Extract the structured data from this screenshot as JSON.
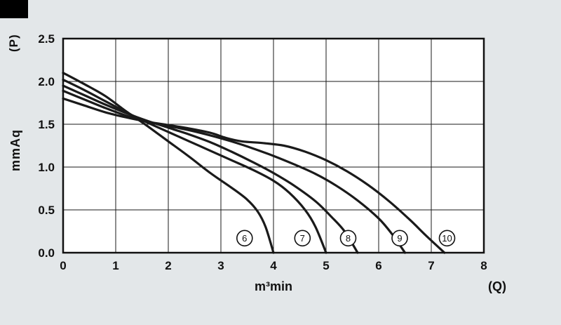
{
  "page": {
    "background_color": "#e3e7e9",
    "corner_mark_color": "#000000"
  },
  "chart_data": {
    "type": "line",
    "title": "",
    "xlabel": "m³min",
    "x_axis_symbol": "(Q)",
    "ylabel": "mmAq",
    "y_axis_symbol": "(P)",
    "xlim": [
      0,
      8
    ],
    "ylim": [
      0,
      2.5
    ],
    "grid": true,
    "line_color": "#1a1a1a",
    "grid_color": "#1a1a1a",
    "x_ticks": [
      "0",
      "1",
      "2",
      "3",
      "4",
      "5",
      "6",
      "7",
      "8"
    ],
    "y_ticks": [
      "0.0",
      "0.5",
      "1.0",
      "1.5",
      "2.0",
      "2.5"
    ],
    "series": [
      {
        "name": "curve-6",
        "label": "6",
        "points": [
          [
            0,
            2.1
          ],
          [
            0.4,
            1.97
          ],
          [
            0.8,
            1.83
          ],
          [
            1.2,
            1.65
          ],
          [
            1.6,
            1.48
          ],
          [
            2.0,
            1.3
          ],
          [
            2.4,
            1.12
          ],
          [
            2.8,
            0.93
          ],
          [
            3.2,
            0.76
          ],
          [
            3.5,
            0.62
          ],
          [
            3.7,
            0.48
          ],
          [
            3.85,
            0.3
          ],
          [
            4.0,
            0.0
          ]
        ]
      },
      {
        "name": "curve-7",
        "label": "7",
        "points": [
          [
            0,
            2.02
          ],
          [
            0.4,
            1.9
          ],
          [
            0.8,
            1.77
          ],
          [
            1.2,
            1.64
          ],
          [
            1.6,
            1.52
          ],
          [
            2.0,
            1.41
          ],
          [
            2.4,
            1.3
          ],
          [
            2.8,
            1.19
          ],
          [
            3.2,
            1.08
          ],
          [
            3.6,
            0.97
          ],
          [
            4.0,
            0.84
          ],
          [
            4.3,
            0.7
          ],
          [
            4.6,
            0.5
          ],
          [
            4.8,
            0.3
          ],
          [
            5.0,
            0.0
          ]
        ]
      },
      {
        "name": "curve-8",
        "label": "8",
        "points": [
          [
            0,
            1.95
          ],
          [
            0.4,
            1.84
          ],
          [
            0.8,
            1.73
          ],
          [
            1.2,
            1.63
          ],
          [
            1.6,
            1.54
          ],
          [
            2.0,
            1.46
          ],
          [
            2.4,
            1.38
          ],
          [
            2.8,
            1.29
          ],
          [
            3.2,
            1.18
          ],
          [
            3.6,
            1.06
          ],
          [
            4.0,
            0.93
          ],
          [
            4.4,
            0.78
          ],
          [
            4.8,
            0.6
          ],
          [
            5.1,
            0.42
          ],
          [
            5.35,
            0.25
          ],
          [
            5.6,
            0.0
          ]
        ]
      },
      {
        "name": "curve-9",
        "label": "9",
        "points": [
          [
            0,
            1.89
          ],
          [
            0.4,
            1.79
          ],
          [
            0.8,
            1.69
          ],
          [
            1.2,
            1.6
          ],
          [
            1.6,
            1.53
          ],
          [
            2.0,
            1.48
          ],
          [
            2.4,
            1.43
          ],
          [
            2.8,
            1.37
          ],
          [
            3.2,
            1.3
          ],
          [
            3.6,
            1.22
          ],
          [
            4.0,
            1.13
          ],
          [
            4.4,
            1.03
          ],
          [
            4.8,
            0.92
          ],
          [
            5.2,
            0.78
          ],
          [
            5.6,
            0.61
          ],
          [
            6.0,
            0.4
          ],
          [
            6.25,
            0.22
          ],
          [
            6.5,
            0.0
          ]
        ]
      },
      {
        "name": "curve-10",
        "label": "10",
        "points": [
          [
            0,
            1.8
          ],
          [
            0.4,
            1.72
          ],
          [
            0.8,
            1.64
          ],
          [
            1.2,
            1.58
          ],
          [
            1.6,
            1.53
          ],
          [
            2.0,
            1.49
          ],
          [
            2.4,
            1.45
          ],
          [
            2.8,
            1.4
          ],
          [
            3.1,
            1.34
          ],
          [
            3.4,
            1.3
          ],
          [
            3.8,
            1.28
          ],
          [
            4.2,
            1.25
          ],
          [
            4.6,
            1.18
          ],
          [
            5.0,
            1.08
          ],
          [
            5.4,
            0.95
          ],
          [
            5.8,
            0.79
          ],
          [
            6.2,
            0.6
          ],
          [
            6.6,
            0.38
          ],
          [
            6.9,
            0.2
          ],
          [
            7.25,
            0.0
          ]
        ]
      }
    ],
    "curve_labels": [
      {
        "text": "6",
        "x": 3.45,
        "y": 0.17
      },
      {
        "text": "7",
        "x": 4.55,
        "y": 0.17
      },
      {
        "text": "8",
        "x": 5.42,
        "y": 0.17
      },
      {
        "text": "9",
        "x": 6.4,
        "y": 0.17
      },
      {
        "text": "10",
        "x": 7.3,
        "y": 0.17
      }
    ]
  }
}
